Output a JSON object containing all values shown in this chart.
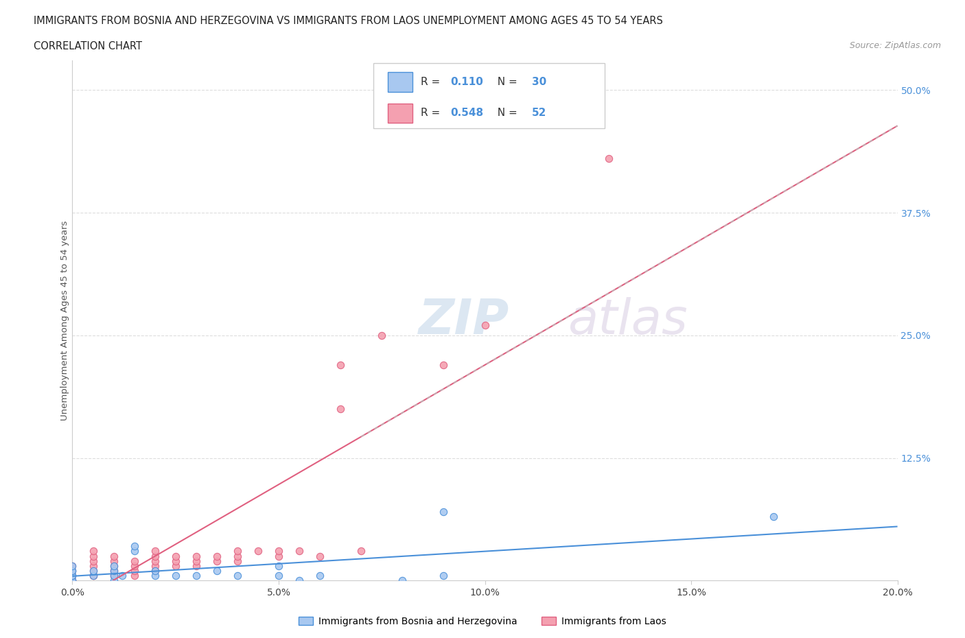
{
  "title_line1": "IMMIGRANTS FROM BOSNIA AND HERZEGOVINA VS IMMIGRANTS FROM LAOS UNEMPLOYMENT AMONG AGES 45 TO 54 YEARS",
  "title_line2": "CORRELATION CHART",
  "source": "Source: ZipAtlas.com",
  "ylabel": "Unemployment Among Ages 45 to 54 years",
  "xlim": [
    0.0,
    0.2
  ],
  "ylim": [
    0.0,
    0.53
  ],
  "xtick_labels": [
    "0.0%",
    "5.0%",
    "10.0%",
    "15.0%",
    "20.0%"
  ],
  "xtick_vals": [
    0.0,
    0.05,
    0.1,
    0.15,
    0.2
  ],
  "ytick_labels": [
    "",
    "12.5%",
    "25.0%",
    "37.5%",
    "50.0%"
  ],
  "ytick_vals": [
    0.0,
    0.125,
    0.25,
    0.375,
    0.5
  ],
  "bosnia_color": "#a8c8f0",
  "laos_color": "#f4a0b0",
  "bosnia_R": 0.11,
  "bosnia_N": 30,
  "laos_R": 0.548,
  "laos_N": 52,
  "bosnia_line_color": "#4a90d9",
  "laos_line_color": "#e06080",
  "watermark_zip": "ZIP",
  "watermark_atlas": "atlas",
  "bosnia_x": [
    0.0,
    0.0,
    0.0,
    0.0,
    0.0,
    0.0,
    0.0,
    0.005,
    0.005,
    0.01,
    0.01,
    0.01,
    0.01,
    0.012,
    0.015,
    0.015,
    0.02,
    0.02,
    0.025,
    0.03,
    0.035,
    0.04,
    0.05,
    0.05,
    0.055,
    0.06,
    0.08,
    0.09,
    0.09,
    0.17
  ],
  "bosnia_y": [
    0.0,
    0.0,
    0.005,
    0.005,
    0.01,
    0.01,
    0.015,
    0.005,
    0.01,
    0.0,
    0.005,
    0.01,
    0.015,
    0.005,
    0.03,
    0.035,
    0.005,
    0.01,
    0.005,
    0.005,
    0.01,
    0.005,
    0.005,
    0.015,
    0.0,
    0.005,
    0.0,
    0.005,
    0.07,
    0.065
  ],
  "laos_x": [
    0.0,
    0.0,
    0.0,
    0.0,
    0.0,
    0.0,
    0.005,
    0.005,
    0.005,
    0.005,
    0.005,
    0.005,
    0.005,
    0.01,
    0.01,
    0.01,
    0.01,
    0.01,
    0.01,
    0.01,
    0.015,
    0.015,
    0.015,
    0.015,
    0.02,
    0.02,
    0.02,
    0.02,
    0.02,
    0.025,
    0.025,
    0.025,
    0.03,
    0.03,
    0.03,
    0.035,
    0.035,
    0.04,
    0.04,
    0.04,
    0.045,
    0.05,
    0.05,
    0.055,
    0.06,
    0.065,
    0.065,
    0.07,
    0.075,
    0.09,
    0.1,
    0.13
  ],
  "laos_y": [
    0.0,
    0.0,
    0.005,
    0.005,
    0.01,
    0.015,
    0.005,
    0.005,
    0.01,
    0.015,
    0.02,
    0.025,
    0.03,
    0.005,
    0.005,
    0.01,
    0.01,
    0.015,
    0.02,
    0.025,
    0.005,
    0.01,
    0.015,
    0.02,
    0.01,
    0.015,
    0.02,
    0.025,
    0.03,
    0.015,
    0.02,
    0.025,
    0.015,
    0.02,
    0.025,
    0.02,
    0.025,
    0.02,
    0.025,
    0.03,
    0.03,
    0.025,
    0.03,
    0.03,
    0.025,
    0.175,
    0.22,
    0.03,
    0.25,
    0.22,
    0.26,
    0.43
  ]
}
